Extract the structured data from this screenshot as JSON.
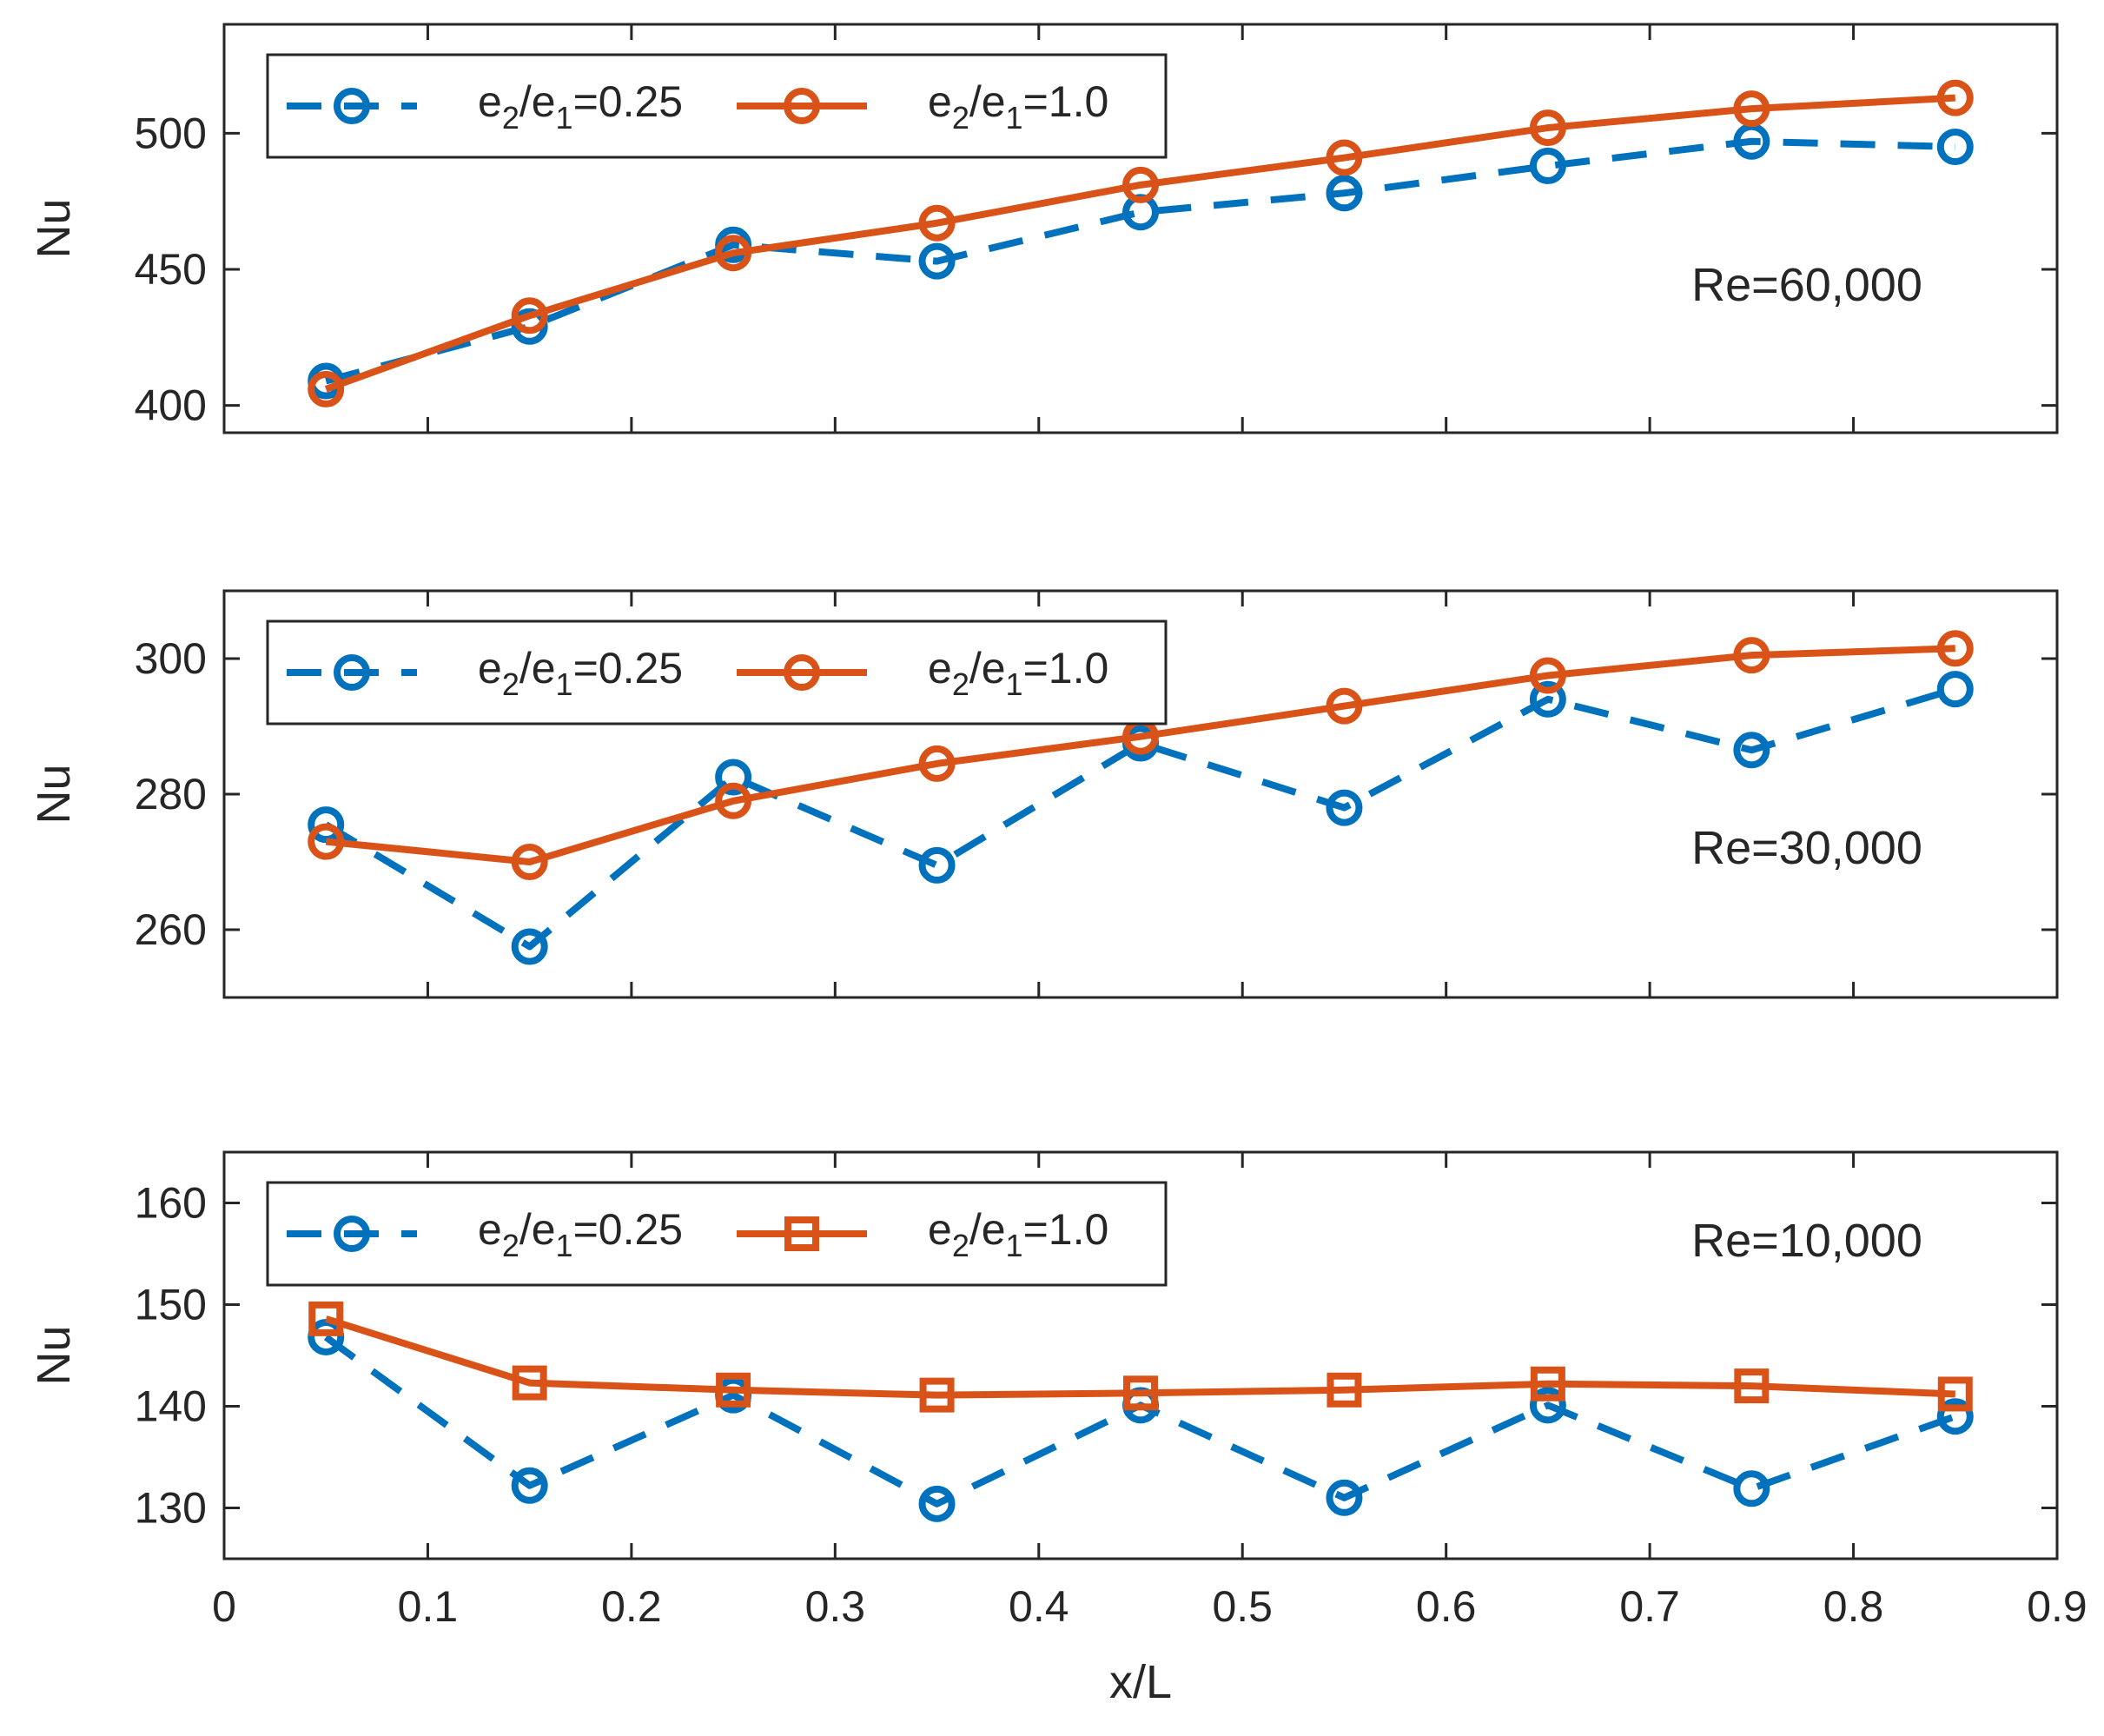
{
  "chart_data": [
    {
      "type": "line",
      "annotation": "Re=60,000",
      "ylabel": "Nu",
      "xlabel": "",
      "xlim": [
        0,
        0.9
      ],
      "ylim": [
        390,
        540
      ],
      "yticks": [
        400,
        450,
        500
      ],
      "x": [
        0.05,
        0.15,
        0.25,
        0.35,
        0.45,
        0.55,
        0.65,
        0.75,
        0.85
      ],
      "series": [
        {
          "name": "e2/e1=0.25",
          "color": "#0072BD",
          "style": "dashed",
          "marker": "circle",
          "values": [
            409,
            429,
            459,
            453,
            471,
            478,
            488,
            497,
            495
          ]
        },
        {
          "name": "e2/e1=1.0",
          "color": "#D95319",
          "style": "solid",
          "marker": "circle",
          "values": [
            406,
            433,
            456,
            467,
            481,
            491,
            502,
            509,
            513
          ]
        }
      ],
      "legend": {
        "position": "top-left",
        "entries": [
          {
            "base": "e",
            "sub1": "2",
            "mid": "/e",
            "sub2": "1",
            "tail": "=0.25"
          },
          {
            "base": "e",
            "sub1": "2",
            "mid": "/e",
            "sub2": "1",
            "tail": "=1.0"
          }
        ]
      }
    },
    {
      "type": "line",
      "annotation": "Re=30,000",
      "ylabel": "Nu",
      "xlabel": "",
      "xlim": [
        0,
        0.9
      ],
      "ylim": [
        250,
        310
      ],
      "yticks": [
        260,
        280,
        300
      ],
      "x": [
        0.05,
        0.15,
        0.25,
        0.35,
        0.45,
        0.55,
        0.65,
        0.75,
        0.85
      ],
      "series": [
        {
          "name": "e2/e1=0.25",
          "color": "#0072BD",
          "style": "dashed",
          "marker": "circle",
          "values": [
            275.5,
            257.5,
            282.5,
            269.5,
            287.5,
            278,
            294,
            286.5,
            295.5
          ]
        },
        {
          "name": "e2/e1=1.0",
          "color": "#D95319",
          "style": "solid",
          "marker": "circle",
          "values": [
            273,
            270,
            279,
            284.5,
            288.5,
            293,
            297.5,
            300.5,
            301.5
          ]
        }
      ],
      "legend": {
        "position": "top-left",
        "entries": [
          {
            "base": "e",
            "sub1": "2",
            "mid": "/e",
            "sub2": "1",
            "tail": "=0.25"
          },
          {
            "base": "e",
            "sub1": "2",
            "mid": "/e",
            "sub2": "1",
            "tail": "=1.0"
          }
        ]
      }
    },
    {
      "type": "line",
      "annotation": "Re=10,000",
      "ylabel": "Nu",
      "xlabel": "x/L",
      "xlim": [
        0,
        0.9
      ],
      "ylim": [
        125,
        165
      ],
      "yticks": [
        130,
        140,
        150,
        160
      ],
      "xticks": [
        0,
        0.1,
        0.2,
        0.3,
        0.4,
        0.5,
        0.6,
        0.7,
        0.8,
        0.9
      ],
      "x": [
        0.05,
        0.15,
        0.25,
        0.35,
        0.45,
        0.55,
        0.65,
        0.75,
        0.85
      ],
      "series": [
        {
          "name": "e2/e1=0.25",
          "color": "#0072BD",
          "style": "dashed",
          "marker": "circle",
          "values": [
            146.8,
            132.2,
            141.1,
            130.4,
            140.1,
            131,
            140.1,
            131.9,
            139
          ]
        },
        {
          "name": "e2/e1=1.0",
          "color": "#D95319",
          "style": "solid",
          "marker": "square",
          "values": [
            148.6,
            142.3,
            141.6,
            141.1,
            141.3,
            141.6,
            142.2,
            142,
            141.2
          ]
        }
      ],
      "legend": {
        "position": "top-left",
        "entries": [
          {
            "base": "e",
            "sub1": "2",
            "mid": "/e",
            "sub2": "1",
            "tail": "=0.25"
          },
          {
            "base": "e",
            "sub1": "2",
            "mid": "/e",
            "sub2": "1",
            "tail": "=1.0"
          }
        ]
      }
    }
  ]
}
